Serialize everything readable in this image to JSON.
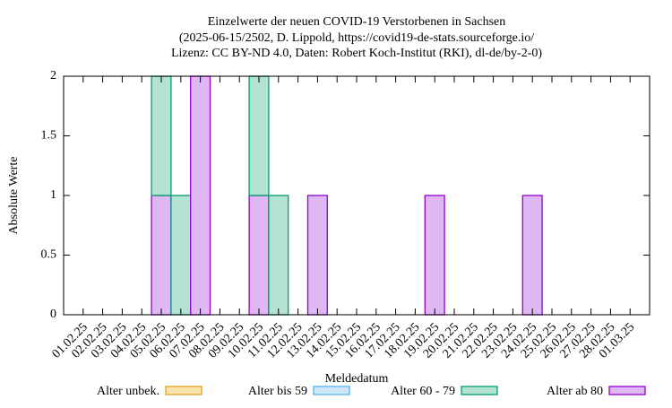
{
  "chart_data": {
    "type": "stacked_bar",
    "title_lines": [
      "Einzelwerte der neuen COVID-19 Verstorbenen in Sachsen",
      "(2025-06-15/2502, D. Lippold, https://covid19-de-stats.sourceforge.io/",
      "Lizenz: CC BY-ND 4.0, Daten: Robert Koch-Institut (RKI), dl-de/by-2-0)"
    ],
    "x_label": "Meldedatum",
    "y_label": "Absolute Werte",
    "categories": [
      "01.02.25",
      "02.02.25",
      "03.02.25",
      "04.02.25",
      "05.02.25",
      "06.02.25",
      "07.02.25",
      "08.02.25",
      "09.02.25",
      "10.02.25",
      "11.02.25",
      "12.02.25",
      "13.02.25",
      "14.02.25",
      "15.02.25",
      "16.02.25",
      "17.02.25",
      "18.02.25",
      "19.02.25",
      "20.02.25",
      "21.02.25",
      "22.02.25",
      "23.02.25",
      "24.02.25",
      "25.02.25",
      "26.02.25",
      "27.02.25",
      "28.02.25",
      "01.03.25"
    ],
    "series": [
      {
        "name": "Alter unbek.",
        "color": "#e5a020",
        "fill": "#fbe3b0",
        "values": [
          0,
          0,
          0,
          0,
          0,
          0,
          0,
          0,
          0,
          0,
          0,
          0,
          0,
          0,
          0,
          0,
          0,
          0,
          0,
          0,
          0,
          0,
          0,
          0,
          0,
          0,
          0,
          0,
          0
        ]
      },
      {
        "name": "Alter bis 59",
        "color": "#56b4e9",
        "fill": "#cde8f8",
        "values": [
          0,
          0,
          0,
          0,
          0,
          0,
          0,
          0,
          0,
          0,
          0,
          0,
          0,
          0,
          0,
          0,
          0,
          0,
          0,
          0,
          0,
          0,
          0,
          0,
          0,
          0,
          0,
          0,
          0
        ]
      },
      {
        "name": "Alter 60 - 79",
        "color": "#009e73",
        "fill": "#b3e2d1",
        "values": [
          0,
          0,
          0,
          0,
          1,
          1,
          0,
          0,
          0,
          1,
          1,
          0,
          0,
          0,
          0,
          0,
          0,
          0,
          0,
          0,
          0,
          0,
          0,
          0,
          0,
          0,
          0,
          0,
          0
        ]
      },
      {
        "name": "Alter ab 80",
        "color": "#9400d3",
        "fill": "#dfb7f2",
        "values": [
          0,
          0,
          0,
          0,
          1,
          0,
          2,
          0,
          0,
          1,
          0,
          0,
          1,
          0,
          0,
          0,
          0,
          0,
          1,
          0,
          0,
          0,
          0,
          1,
          0,
          0,
          0,
          0,
          0
        ]
      }
    ],
    "ylim": [
      0,
      2
    ],
    "yticks": [
      0,
      0.5,
      1,
      1.5,
      2
    ],
    "legend": "bottom"
  }
}
